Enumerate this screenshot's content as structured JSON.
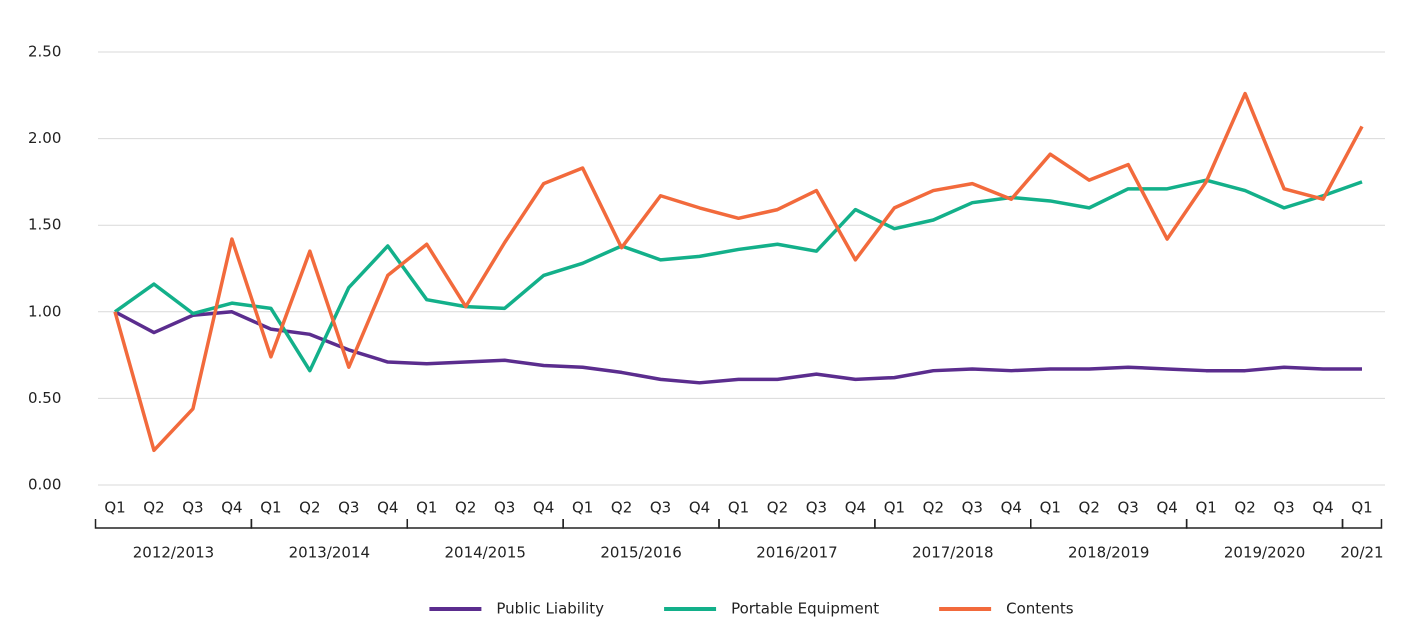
{
  "chart_data": {
    "type": "line",
    "categories": [
      "Q1",
      "Q2",
      "Q3",
      "Q4",
      "Q1",
      "Q2",
      "Q3",
      "Q4",
      "Q1",
      "Q2",
      "Q3",
      "Q4",
      "Q1",
      "Q2",
      "Q3",
      "Q4",
      "Q1",
      "Q2",
      "Q3",
      "Q4",
      "Q1",
      "Q2",
      "Q3",
      "Q4",
      "Q1",
      "Q2",
      "Q3",
      "Q4",
      "Q1",
      "Q2",
      "Q3",
      "Q4",
      "Q1"
    ],
    "x_groups": [
      "2012/2013",
      "2013/2014",
      "2014/2015",
      "2015/2016",
      "2016/2017",
      "2017/2018",
      "2018/2019",
      "2019/2020",
      "20/21"
    ],
    "ylim": [
      0,
      2.5
    ],
    "yticks": [
      {
        "value": 0,
        "label": "0.00"
      },
      {
        "value": 0.5,
        "label": "0.50"
      },
      {
        "value": 1,
        "label": "1.00"
      },
      {
        "value": 1.5,
        "label": "1.50"
      },
      {
        "value": 2,
        "label": "2.00"
      },
      {
        "value": 2.5,
        "label": "2.50"
      }
    ],
    "grid": true,
    "legend": "bottom",
    "series": [
      {
        "name": "Public Liability",
        "color": "#5b2d8e",
        "values": [
          1.0,
          0.88,
          0.98,
          1.0,
          0.9,
          0.87,
          0.78,
          0.71,
          0.7,
          0.71,
          0.72,
          0.69,
          0.68,
          0.65,
          0.61,
          0.59,
          0.61,
          0.61,
          0.64,
          0.61,
          0.62,
          0.66,
          0.67,
          0.66,
          0.67,
          0.67,
          0.68,
          0.67,
          0.66,
          0.66,
          0.68,
          0.67,
          0.67
        ]
      },
      {
        "name": "Portable Equipment",
        "color": "#13b08a",
        "values": [
          1.0,
          1.16,
          0.99,
          1.05,
          1.02,
          0.66,
          1.14,
          1.38,
          1.07,
          1.03,
          1.02,
          1.21,
          1.28,
          1.38,
          1.3,
          1.32,
          1.36,
          1.39,
          1.35,
          1.59,
          1.48,
          1.53,
          1.63,
          1.66,
          1.64,
          1.6,
          1.71,
          1.71,
          1.76,
          1.7,
          1.6,
          1.67,
          1.75
        ]
      },
      {
        "name": "Contents",
        "color": "#f26a3c",
        "values": [
          1.0,
          0.2,
          0.44,
          1.42,
          0.74,
          1.35,
          0.68,
          1.21,
          1.39,
          1.03,
          1.4,
          1.74,
          1.83,
          1.37,
          1.67,
          1.6,
          1.54,
          1.59,
          1.7,
          1.3,
          1.6,
          1.7,
          1.74,
          1.65,
          1.91,
          1.76,
          1.85,
          1.42,
          1.75,
          2.26,
          1.71,
          1.65,
          2.07
        ]
      }
    ]
  }
}
